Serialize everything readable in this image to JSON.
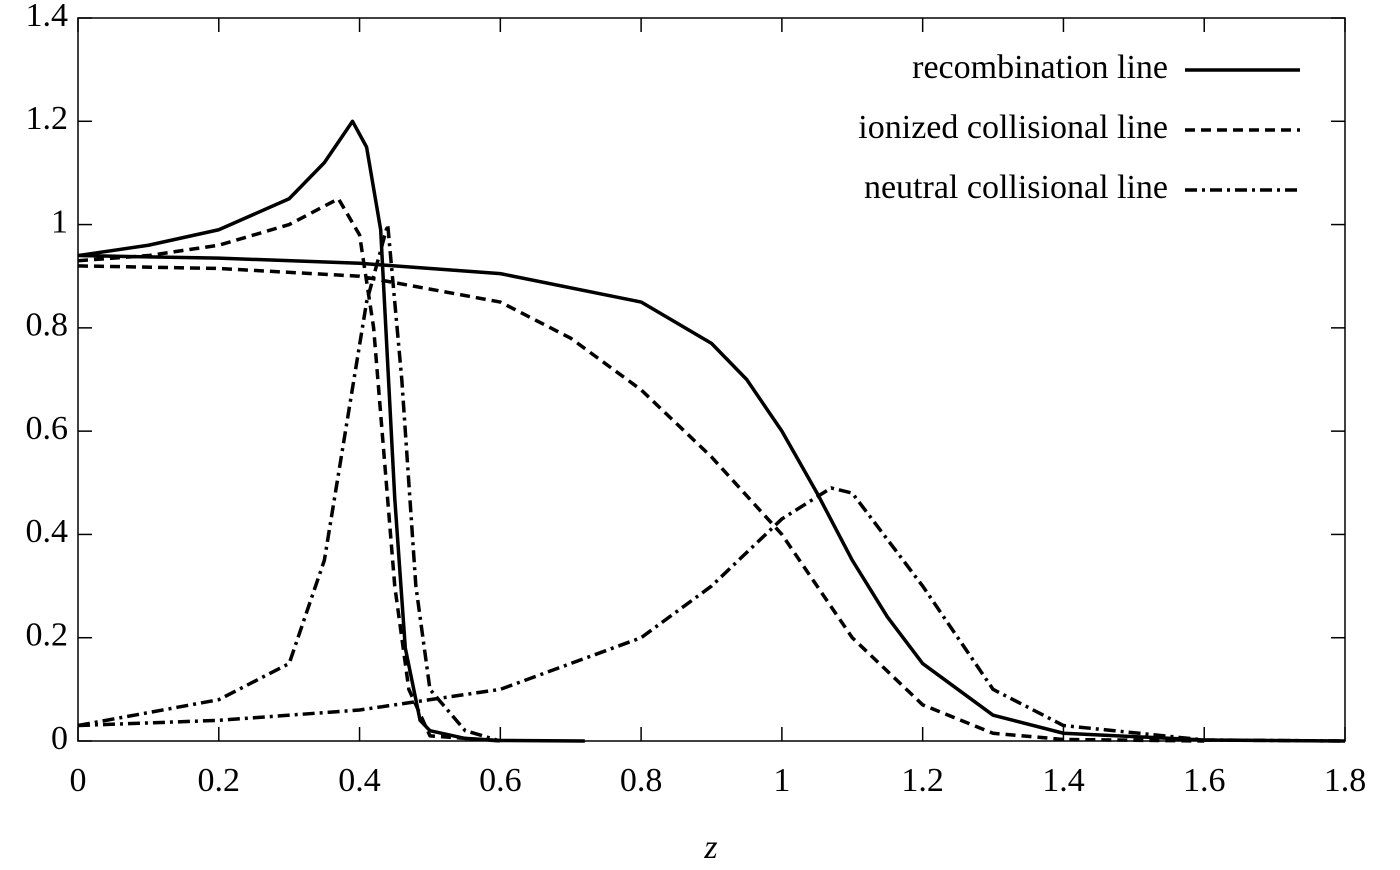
{
  "chart_data": {
    "type": "line",
    "xlabel": "z",
    "xlim": [
      0,
      1.8
    ],
    "xticks": [
      0,
      0.2,
      0.4,
      0.6,
      0.8,
      1,
      1.2,
      1.4,
      1.6,
      1.8
    ],
    "ylim": [
      0,
      1.4
    ],
    "yticks": [
      0,
      0.2,
      0.4,
      0.6,
      0.8,
      1,
      1.2,
      1.4
    ],
    "legend": "upper right",
    "series": [
      {
        "name": "recombination line",
        "color": "#000000",
        "style": "solid",
        "x": [
          0,
          0.1,
          0.2,
          0.3,
          0.35,
          0.39,
          0.41,
          0.43,
          0.45,
          0.465,
          0.486,
          0.5,
          0.55,
          0.6,
          0.72,
          null,
          0,
          0.2,
          0.4,
          0.6,
          0.8,
          0.9,
          0.95,
          1.0,
          1.05,
          1.1,
          1.15,
          1.2,
          1.3,
          1.4,
          1.6,
          1.8
        ],
        "values": [
          0.94,
          0.96,
          0.99,
          1.05,
          1.12,
          1.2,
          1.15,
          0.99,
          0.47,
          0.18,
          0.04,
          0.02,
          0.005,
          0.001,
          0,
          null,
          0.94,
          0.935,
          0.925,
          0.905,
          0.85,
          0.77,
          0.7,
          0.6,
          0.48,
          0.35,
          0.24,
          0.15,
          0.05,
          0.015,
          0.002,
          0
        ]
      },
      {
        "name": "ionized collisional line",
        "color": "#000000",
        "style": "dashed",
        "x": [
          0,
          0.1,
          0.2,
          0.3,
          0.37,
          0.4,
          0.42,
          0.435,
          0.45,
          0.47,
          0.5,
          0.6,
          null,
          0,
          0.2,
          0.4,
          0.6,
          0.7,
          0.8,
          0.9,
          1.0,
          1.05,
          1.1,
          1.2,
          1.3,
          1.4,
          1.6
        ],
        "values": [
          0.93,
          0.94,
          0.96,
          1.0,
          1.05,
          0.98,
          0.8,
          0.55,
          0.3,
          0.1,
          0.01,
          0,
          null,
          0.92,
          0.915,
          0.9,
          0.85,
          0.78,
          0.68,
          0.55,
          0.4,
          0.3,
          0.2,
          0.07,
          0.015,
          0.003,
          0
        ]
      },
      {
        "name": "neutral collisional line",
        "color": "#000000",
        "style": "dashdot",
        "x": [
          0,
          0.2,
          0.3,
          0.35,
          0.38,
          0.41,
          0.44,
          0.46,
          0.48,
          0.5,
          0.55,
          0.6,
          null,
          0,
          0.2,
          0.4,
          0.6,
          0.8,
          0.9,
          1.0,
          1.07,
          1.1,
          1.2,
          1.3,
          1.4,
          1.6,
          1.8
        ],
        "values": [
          0.03,
          0.08,
          0.15,
          0.35,
          0.6,
          0.85,
          1.0,
          0.7,
          0.3,
          0.1,
          0.02,
          0,
          null,
          0.03,
          0.04,
          0.06,
          0.1,
          0.2,
          0.3,
          0.43,
          0.49,
          0.48,
          0.3,
          0.1,
          0.03,
          0.002,
          0
        ]
      }
    ]
  }
}
